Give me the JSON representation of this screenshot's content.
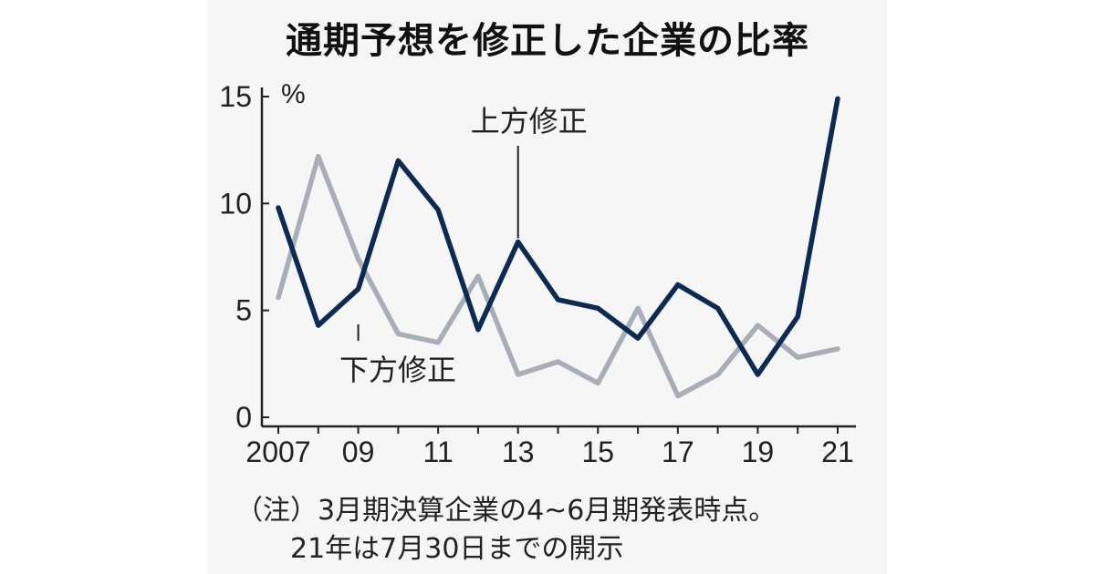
{
  "title": "通期予想を修正した企業の比率",
  "notes": {
    "line1": "（注）3月期決算企業の4~6月期発表時点。",
    "line2": "21年は7月30日までの開示"
  },
  "colors": {
    "upward": "#0d2b52",
    "downward": "#a8adb8",
    "axis": "#222222",
    "background": "#f6f6f6"
  },
  "chart_data": {
    "type": "line",
    "title": "通期予想を修正した企業の比率",
    "yunit": "%",
    "ylim": [
      0,
      15
    ],
    "yticks": [
      0,
      5,
      10,
      15
    ],
    "x": [
      2007,
      2008,
      2009,
      2010,
      2011,
      2012,
      2013,
      2014,
      2015,
      2016,
      2017,
      2018,
      2019,
      2020,
      2021
    ],
    "xtick_labels": [
      {
        "x": 2007,
        "label": "2007"
      },
      {
        "x": 2009,
        "label": "09"
      },
      {
        "x": 2011,
        "label": "11"
      },
      {
        "x": 2013,
        "label": "13"
      },
      {
        "x": 2015,
        "label": "15"
      },
      {
        "x": 2017,
        "label": "17"
      },
      {
        "x": 2019,
        "label": "19"
      },
      {
        "x": 2021,
        "label": "21"
      }
    ],
    "grid": false,
    "series": [
      {
        "name": "上方修正",
        "color": "#0d2b52",
        "values": [
          9.8,
          4.3,
          6.0,
          12.0,
          9.7,
          4.1,
          8.2,
          5.5,
          5.1,
          3.7,
          6.2,
          5.1,
          2.0,
          4.7,
          14.9
        ]
      },
      {
        "name": "下方修正",
        "color": "#a8adb8",
        "values": [
          5.6,
          12.2,
          7.4,
          3.9,
          3.5,
          6.6,
          2.0,
          2.6,
          1.6,
          5.1,
          1.0,
          2.0,
          4.3,
          2.8,
          3.2
        ]
      }
    ],
    "annotations": [
      {
        "text": "上方修正",
        "series": 0,
        "x": 2013
      },
      {
        "text": "下方修正",
        "series": 1,
        "x": 2009
      }
    ]
  }
}
